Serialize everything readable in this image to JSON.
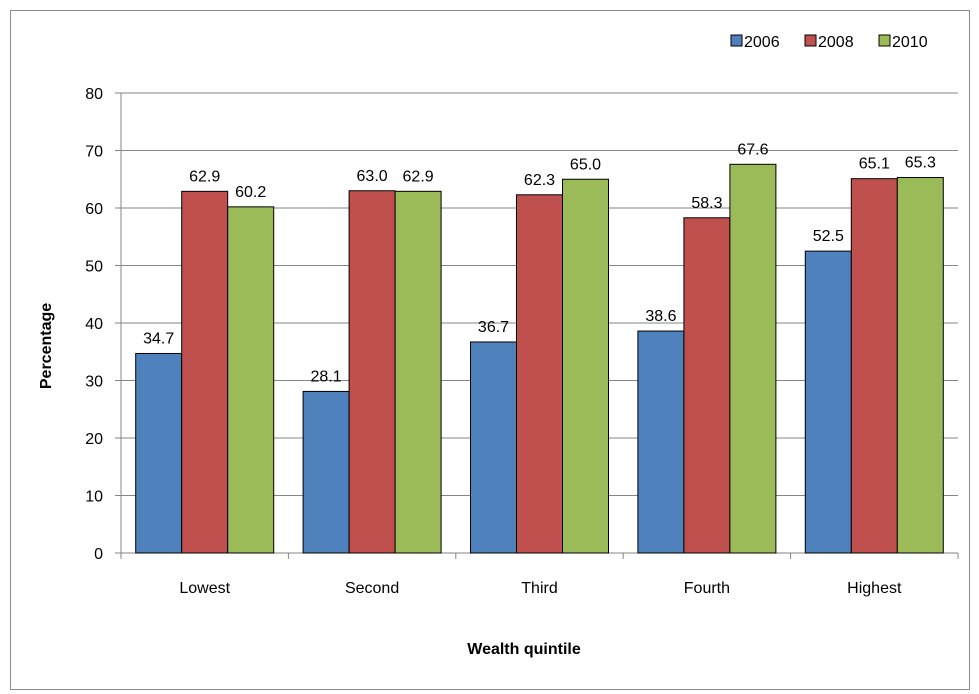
{
  "chart_data": {
    "type": "bar",
    "title": "",
    "xlabel": "Wealth quintile",
    "ylabel": "Percentage",
    "categories": [
      "Lowest",
      "Second",
      "Third",
      "Fourth",
      "Highest"
    ],
    "series": [
      {
        "name": "2006",
        "color": "#4f81bd",
        "values": [
          34.7,
          28.1,
          36.7,
          38.6,
          52.5
        ]
      },
      {
        "name": "2008",
        "color": "#c0504d",
        "values": [
          62.9,
          63.0,
          62.3,
          58.3,
          65.1
        ]
      },
      {
        "name": "2010",
        "color": "#9bbb59",
        "values": [
          60.2,
          62.9,
          65.0,
          67.6,
          65.3
        ]
      }
    ],
    "ylim": [
      0,
      80
    ],
    "yticks": [
      0,
      10,
      20,
      30,
      40,
      50,
      60,
      70,
      80
    ],
    "grid": true,
    "legend_position": "top-right"
  }
}
